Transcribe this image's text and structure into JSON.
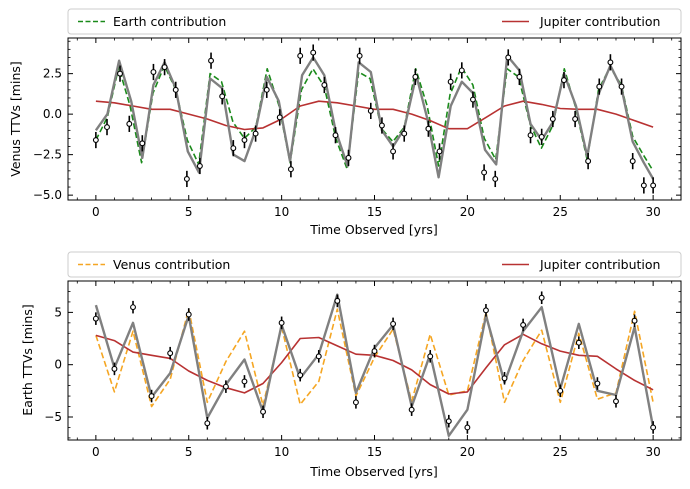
{
  "chart_data": [
    {
      "type": "line",
      "xlabel": "Time Observed [yrs]",
      "ylabel": "Venus TTVs [mins]",
      "xlim": [
        -1.5,
        31.5
      ],
      "ylim": [
        -5.3,
        4.7
      ],
      "xticks": [
        0,
        5,
        10,
        15,
        20,
        25,
        30
      ],
      "yticks": [
        -5.0,
        -2.5,
        0.0,
        2.5
      ],
      "ytick_labels": [
        "−5.0",
        "−2.5",
        "0.0",
        "2.5"
      ],
      "grid": false,
      "legend_placement": "top-outside",
      "series": [
        {
          "name": "Earth contribution",
          "style": "dashed",
          "color": "#1a8a1a",
          "x": [
            0,
            0.615,
            1.23,
            1.845,
            2.46,
            3.075,
            3.69,
            4.305,
            4.92,
            5.535,
            6.15,
            6.765,
            7.38,
            7.995,
            8.61,
            9.225,
            9.84,
            10.455,
            11.07,
            11.685,
            12.3,
            12.915,
            13.53,
            14.145,
            14.76,
            15.375,
            15.99,
            16.605,
            17.22,
            17.835,
            18.45,
            19.065,
            19.68,
            20.295,
            20.91,
            21.525,
            22.14,
            22.755,
            23.37,
            23.985,
            24.6,
            25.215,
            25.83,
            26.445,
            27.06,
            27.675,
            28.29,
            28.905,
            29.52,
            30.0
          ],
          "y": [
            -1.6,
            -0.2,
            2.9,
            0.5,
            -3.0,
            1.3,
            3.0,
            1.5,
            -1.6,
            -3.1,
            2.5,
            2.0,
            -0.5,
            -1.5,
            -0.8,
            2.8,
            0.6,
            -3.0,
            1.5,
            2.8,
            1.7,
            -1.5,
            -3.4,
            2.6,
            2.2,
            -0.9,
            -1.7,
            -0.8,
            2.8,
            0.5,
            -3.2,
            1.2,
            2.9,
            1.8,
            -1.5,
            -2.8,
            2.8,
            2.3,
            -0.6,
            -2.1,
            -0.7,
            2.8,
            0.4,
            -2.8,
            1.5,
            2.9,
            1.8,
            -1.4,
            -2.6,
            -3.5
          ]
        },
        {
          "name": "Jupiter contribution",
          "style": "solid",
          "color": "#b83232",
          "x": [
            0,
            1,
            2,
            3,
            4,
            5,
            6,
            7,
            8,
            9,
            10,
            11,
            12,
            13,
            14,
            15,
            16,
            17,
            18,
            19,
            20,
            21,
            22,
            23,
            24,
            25,
            26,
            27,
            28,
            29,
            30
          ],
          "y": [
            0.8,
            0.7,
            0.5,
            0.3,
            0.3,
            0.0,
            -0.3,
            -0.7,
            -0.95,
            -0.85,
            -0.3,
            0.5,
            0.8,
            0.7,
            0.5,
            0.3,
            0.3,
            0.0,
            -0.4,
            -0.9,
            -0.9,
            -0.2,
            0.5,
            0.8,
            0.6,
            0.35,
            0.3,
            0.3,
            0.0,
            -0.4,
            -0.8
          ]
        },
        {
          "name": "",
          "style": "solid",
          "color": "#808080",
          "x": [
            0,
            0.62,
            1.25,
            1.9,
            2.5,
            3.1,
            3.7,
            4.3,
            4.95,
            5.55,
            6.15,
            6.8,
            7.4,
            8.0,
            8.6,
            9.2,
            9.85,
            10.45,
            11.1,
            11.7,
            12.3,
            12.9,
            13.55,
            14.15,
            14.8,
            15.4,
            16.0,
            16.6,
            17.25,
            17.85,
            18.45,
            19.1,
            19.7,
            20.3,
            20.95,
            21.55,
            22.15,
            22.8,
            23.4,
            24.0,
            24.6,
            25.2,
            25.85,
            26.45,
            27.05,
            27.7,
            28.3,
            28.9,
            29.5,
            30.0
          ],
          "y": [
            -1.0,
            0.0,
            3.3,
            0.8,
            -2.7,
            1.8,
            3.2,
            1.6,
            -2.3,
            -3.6,
            2.2,
            1.6,
            -2.5,
            -2.9,
            -1.0,
            2.3,
            0.8,
            -2.9,
            2.4,
            3.5,
            2.4,
            -1.0,
            -3.2,
            3.2,
            2.6,
            -1.0,
            -2.0,
            -0.9,
            2.4,
            -0.3,
            -3.9,
            0.5,
            2.0,
            1.3,
            -2.2,
            -3.1,
            3.6,
            2.7,
            -0.6,
            -1.6,
            -0.5,
            2.5,
            0.5,
            -2.6,
            1.2,
            3.0,
            1.6,
            -1.7,
            -3.0,
            -4.0
          ]
        }
      ],
      "observations": {
        "x": [
          0,
          0.6,
          1.3,
          1.8,
          2.5,
          3.1,
          3.7,
          4.3,
          4.9,
          5.6,
          6.2,
          6.8,
          7.4,
          8.0,
          8.6,
          9.2,
          9.9,
          10.5,
          11.0,
          11.7,
          12.3,
          12.9,
          13.6,
          14.2,
          14.8,
          15.4,
          16.0,
          16.6,
          17.2,
          17.9,
          18.5,
          19.1,
          19.7,
          20.3,
          20.9,
          21.5,
          22.2,
          22.8,
          23.4,
          24.0,
          24.6,
          25.2,
          25.8,
          26.5,
          27.1,
          27.7,
          28.3,
          28.9,
          29.5,
          30.0
        ],
        "y": [
          -1.6,
          -0.8,
          2.5,
          -0.6,
          -1.8,
          2.6,
          2.9,
          1.5,
          -4.0,
          -3.2,
          3.3,
          1.1,
          -2.1,
          -1.6,
          -1.2,
          1.5,
          -0.2,
          -3.4,
          3.6,
          3.8,
          1.8,
          -1.3,
          -2.7,
          3.6,
          0.2,
          -0.7,
          -2.3,
          -1.2,
          2.3,
          -0.9,
          -2.3,
          2.0,
          2.7,
          0.9,
          -3.6,
          -4.0,
          3.5,
          2.3,
          -1.3,
          -1.4,
          -0.3,
          2.1,
          -0.3,
          -2.9,
          1.7,
          3.2,
          1.7,
          -2.9,
          -4.4,
          -4.4
        ],
        "yerr": 0.5
      }
    },
    {
      "type": "line",
      "xlabel": "Time Observed [yrs]",
      "ylabel": "Earth TTVs [mins]",
      "xlim": [
        -1.5,
        31.5
      ],
      "ylim": [
        -7.2,
        8.0
      ],
      "xticks": [
        0,
        5,
        10,
        15,
        20,
        25,
        30
      ],
      "yticks": [
        -5,
        0,
        5
      ],
      "ytick_labels": [
        "−5",
        "0",
        "5"
      ],
      "grid": false,
      "legend_placement": "top-outside",
      "series": [
        {
          "name": "Venus contribution",
          "style": "dashed",
          "color": "#f5a623",
          "x": [
            0,
            1,
            2,
            3,
            4,
            5,
            6,
            7,
            8,
            9,
            10,
            11,
            12,
            13,
            14,
            15,
            16,
            17,
            18,
            19,
            20,
            21,
            22,
            23,
            24,
            25,
            26,
            27,
            28,
            29,
            30
          ],
          "y": [
            2.8,
            -2.6,
            3.2,
            -4.0,
            -1.4,
            5.3,
            -3.6,
            0.3,
            3.2,
            -3.9,
            3.6,
            -3.8,
            -1.6,
            5.3,
            -3.0,
            0.7,
            3.4,
            -3.5,
            2.9,
            -2.9,
            -2.5,
            5.0,
            -3.6,
            0.4,
            3.3,
            -3.6,
            3.0,
            -3.3,
            -2.7,
            5.1,
            -3.6
          ]
        },
        {
          "name": "Jupiter contribution",
          "style": "solid",
          "color": "#b83232",
          "x": [
            0,
            1,
            2,
            3,
            4,
            5,
            6,
            7,
            8,
            9,
            10,
            11,
            12,
            13,
            14,
            15,
            16,
            17,
            18,
            19,
            20,
            21,
            22,
            23,
            24,
            25,
            26,
            27,
            28,
            29,
            30
          ],
          "y": [
            2.8,
            2.3,
            1.2,
            0.9,
            0.6,
            -0.6,
            -1.5,
            -2.2,
            -2.7,
            -1.8,
            0.2,
            2.5,
            2.6,
            1.8,
            1.0,
            0.9,
            0.4,
            -0.5,
            -1.9,
            -2.8,
            -2.6,
            -0.3,
            1.9,
            2.9,
            2.0,
            1.3,
            0.9,
            0.8,
            -0.4,
            -1.5,
            -2.4
          ]
        },
        {
          "name": "",
          "style": "solid",
          "color": "#808080",
          "x": [
            0,
            1,
            2,
            3,
            4,
            5,
            6,
            7,
            8,
            9,
            10,
            11,
            12,
            13,
            14,
            15,
            16,
            17,
            18,
            19,
            20,
            21,
            22,
            23,
            24,
            25,
            26,
            27,
            28,
            29,
            30
          ],
          "y": [
            5.7,
            -0.3,
            4.0,
            -3.1,
            -0.8,
            4.7,
            -5.1,
            -1.9,
            0.5,
            -4.5,
            3.8,
            -1.3,
            1.0,
            6.7,
            -2.7,
            1.6,
            3.8,
            -4.0,
            1.0,
            -6.8,
            -4.3,
            4.7,
            -1.7,
            3.2,
            5.5,
            -2.3,
            3.9,
            -2.5,
            -2.9,
            3.6,
            -6.0
          ]
        }
      ],
      "observations": {
        "x": [
          0,
          1,
          2,
          3,
          4,
          5,
          6,
          7,
          8,
          9,
          10,
          11,
          12,
          13,
          14,
          15,
          16,
          17,
          18,
          19,
          20,
          21,
          22,
          23,
          24,
          25,
          26,
          27,
          28,
          29,
          30
        ],
        "y": [
          4.4,
          -0.4,
          5.5,
          -3.0,
          1.1,
          4.8,
          -5.6,
          -2.1,
          -1.6,
          -4.5,
          4.0,
          -1.0,
          0.8,
          6.1,
          -3.6,
          1.3,
          3.9,
          -4.3,
          0.8,
          -5.4,
          -6.0,
          5.2,
          -1.3,
          3.8,
          6.4,
          -2.5,
          2.1,
          -1.8,
          -3.5,
          4.2,
          -6.0
        ],
        "yerr": 0.6
      }
    }
  ]
}
